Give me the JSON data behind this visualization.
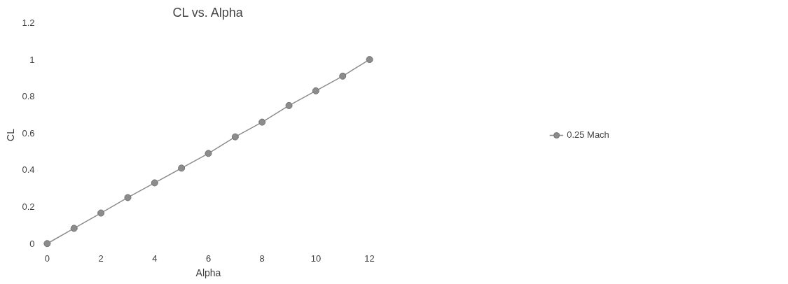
{
  "chart_data": {
    "type": "line",
    "title": "CL vs. Alpha",
    "xlabel": "Alpha",
    "ylabel": "CL",
    "x": [
      0,
      1,
      2,
      3,
      4,
      5,
      6,
      7,
      8,
      9,
      10,
      11,
      12
    ],
    "series": [
      {
        "name": "0.25 Mach",
        "color": "#8c8c8c",
        "values": [
          0,
          0.083,
          0.166,
          0.25,
          0.33,
          0.41,
          0.49,
          0.58,
          0.66,
          0.75,
          0.83,
          0.91,
          1.0
        ]
      }
    ],
    "xlim": [
      0,
      12
    ],
    "xticks": [
      0,
      2,
      4,
      6,
      8,
      10,
      12
    ],
    "ylim": [
      0,
      1.2
    ],
    "yticks": [
      0,
      0.2,
      0.4,
      0.6,
      0.8,
      1,
      1.2
    ],
    "grid": false,
    "legend": "right",
    "marker": "circle",
    "line_style": "solid"
  }
}
